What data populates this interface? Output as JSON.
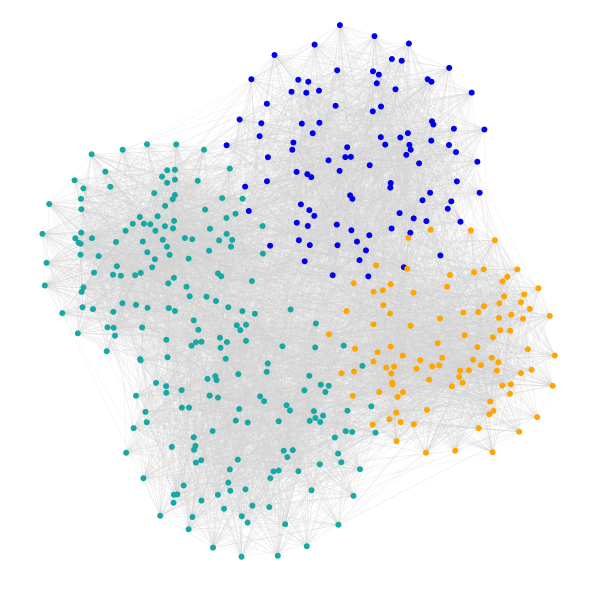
{
  "graph": {
    "colors": {
      "background": "#ffffff",
      "edge": "#d3d3d3",
      "blue": "#0000ee",
      "teal": "#16a8a3",
      "orange": "#ffa500"
    },
    "clusters": [
      {
        "id": "blue-cluster",
        "color": "blue",
        "node_count": 100
      },
      {
        "id": "teal-upper-left-cluster",
        "color": "teal",
        "node_count": 105
      },
      {
        "id": "orange-cluster",
        "color": "orange",
        "node_count": 100
      },
      {
        "id": "teal-bottom-cluster",
        "color": "teal",
        "node_count": 110
      }
    ]
  }
}
